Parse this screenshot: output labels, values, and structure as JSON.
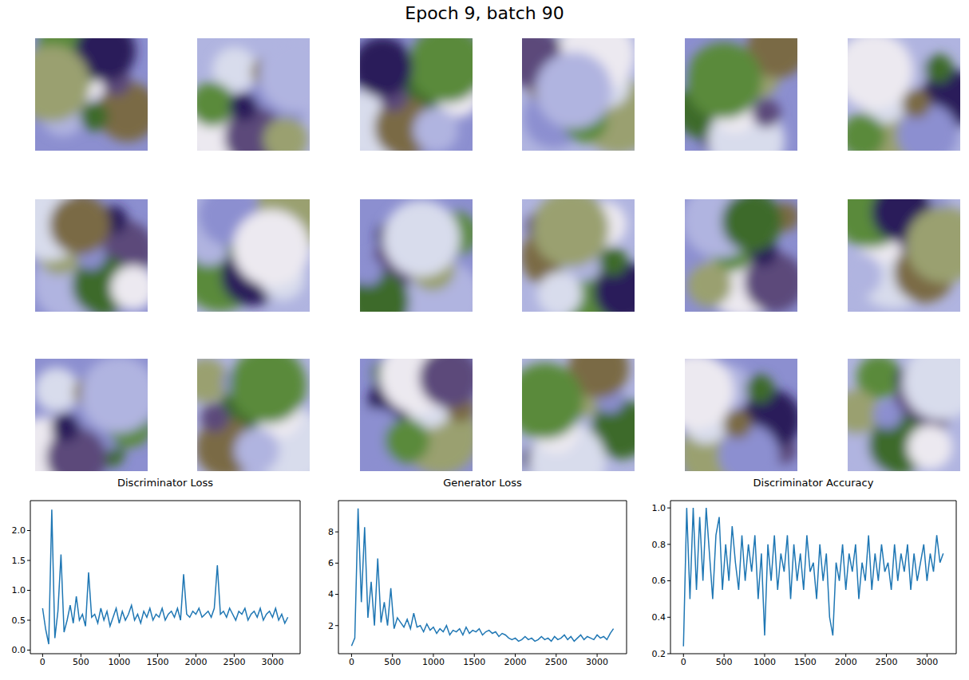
{
  "title": "Epoch 9, batch 90",
  "chart_data": [
    {
      "type": "line",
      "title": "Discriminator Loss",
      "color": "#1f77b4",
      "x": [
        0,
        40,
        80,
        120,
        160,
        200,
        240,
        280,
        320,
        360,
        400,
        440,
        480,
        520,
        560,
        600,
        640,
        680,
        720,
        760,
        800,
        840,
        880,
        920,
        960,
        1000,
        1040,
        1080,
        1120,
        1160,
        1200,
        1240,
        1280,
        1320,
        1360,
        1400,
        1440,
        1480,
        1520,
        1560,
        1600,
        1640,
        1680,
        1720,
        1760,
        1800,
        1840,
        1880,
        1920,
        1960,
        2000,
        2040,
        2080,
        2120,
        2160,
        2200,
        2240,
        2280,
        2320,
        2360,
        2400,
        2440,
        2480,
        2520,
        2560,
        2600,
        2640,
        2680,
        2720,
        2760,
        2800,
        2840,
        2880,
        2920,
        2960,
        3000,
        3040,
        3080,
        3120,
        3160,
        3200
      ],
      "values": [
        0.7,
        0.35,
        0.1,
        2.35,
        0.2,
        0.65,
        1.6,
        0.3,
        0.5,
        0.75,
        0.45,
        0.9,
        0.5,
        0.6,
        0.4,
        1.3,
        0.55,
        0.6,
        0.45,
        0.7,
        0.5,
        0.65,
        0.4,
        0.55,
        0.7,
        0.45,
        0.65,
        0.5,
        0.6,
        0.75,
        0.5,
        0.6,
        0.45,
        0.65,
        0.55,
        0.7,
        0.5,
        0.6,
        0.55,
        0.7,
        0.5,
        0.6,
        0.65,
        0.55,
        0.7,
        0.5,
        1.27,
        0.6,
        0.55,
        0.65,
        0.6,
        0.7,
        0.55,
        0.6,
        0.65,
        0.55,
        0.7,
        1.42,
        0.6,
        0.65,
        0.55,
        0.7,
        0.6,
        0.5,
        0.65,
        0.6,
        0.7,
        0.5,
        0.6,
        0.65,
        0.55,
        0.7,
        0.5,
        0.6,
        0.65,
        0.55,
        0.7,
        0.5,
        0.6,
        0.45,
        0.55
      ],
      "xlim": [
        -160,
        3360
      ],
      "xticks": [
        0,
        500,
        1000,
        1500,
        2000,
        2500,
        3000
      ],
      "ylim": [
        -0.06,
        2.5
      ],
      "yticks": [
        {
          "value": 0,
          "label": "0.0"
        },
        0.5,
        {
          "value": 1,
          "label": "1.0"
        },
        1.5,
        {
          "value": 2,
          "label": "2.0"
        }
      ]
    },
    {
      "type": "line",
      "title": "Generator Loss",
      "color": "#1f77b4",
      "x": [
        0,
        40,
        80,
        120,
        160,
        200,
        240,
        280,
        320,
        360,
        400,
        440,
        480,
        520,
        560,
        600,
        640,
        680,
        720,
        760,
        800,
        840,
        880,
        920,
        960,
        1000,
        1040,
        1080,
        1120,
        1160,
        1200,
        1240,
        1280,
        1320,
        1360,
        1400,
        1440,
        1480,
        1520,
        1560,
        1600,
        1640,
        1680,
        1720,
        1760,
        1800,
        1840,
        1880,
        1920,
        1960,
        2000,
        2040,
        2080,
        2120,
        2160,
        2200,
        2240,
        2280,
        2320,
        2360,
        2400,
        2440,
        2480,
        2520,
        2560,
        2600,
        2640,
        2680,
        2720,
        2760,
        2800,
        2840,
        2880,
        2920,
        2960,
        3000,
        3040,
        3080,
        3120,
        3160,
        3200
      ],
      "values": [
        0.7,
        1.2,
        9.5,
        3.5,
        8.3,
        2.5,
        4.8,
        2.0,
        6.3,
        2.2,
        3.5,
        2.0,
        4.4,
        1.8,
        2.5,
        2.2,
        1.9,
        2.4,
        1.8,
        2.8,
        1.9,
        2.0,
        1.6,
        2.1,
        1.7,
        1.9,
        1.5,
        1.8,
        1.6,
        2.0,
        1.4,
        1.7,
        1.6,
        1.8,
        1.4,
        1.9,
        1.5,
        1.7,
        1.6,
        1.8,
        1.4,
        1.6,
        1.7,
        1.5,
        1.6,
        1.3,
        1.5,
        1.4,
        1.2,
        1.1,
        1.2,
        1.0,
        1.1,
        1.3,
        1.1,
        1.2,
        1.0,
        1.1,
        1.3,
        1.1,
        1.2,
        1.0,
        1.3,
        1.1,
        1.2,
        1.4,
        1.1,
        1.3,
        1.0,
        1.2,
        1.4,
        1.1,
        1.3,
        1.2,
        1.1,
        1.4,
        1.2,
        1.3,
        1.1,
        1.5,
        1.8
      ],
      "xlim": [
        -160,
        3360
      ],
      "xticks": [
        0,
        500,
        1000,
        1500,
        2000,
        2500,
        3000
      ],
      "ylim": [
        0.2,
        10
      ],
      "yticks": [
        2,
        4,
        6,
        8
      ]
    },
    {
      "type": "line",
      "title": "Discriminator Accuracy",
      "color": "#1f77b4",
      "x": [
        0,
        40,
        80,
        120,
        160,
        200,
        240,
        280,
        320,
        360,
        400,
        440,
        480,
        520,
        560,
        600,
        640,
        680,
        720,
        760,
        800,
        840,
        880,
        920,
        960,
        1000,
        1040,
        1080,
        1120,
        1160,
        1200,
        1240,
        1280,
        1320,
        1360,
        1400,
        1440,
        1480,
        1520,
        1560,
        1600,
        1640,
        1680,
        1720,
        1760,
        1800,
        1840,
        1880,
        1920,
        1960,
        2000,
        2040,
        2080,
        2120,
        2160,
        2200,
        2240,
        2280,
        2320,
        2360,
        2400,
        2440,
        2480,
        2520,
        2560,
        2600,
        2640,
        2680,
        2720,
        2760,
        2800,
        2840,
        2880,
        2920,
        2960,
        3000,
        3040,
        3080,
        3120,
        3160,
        3200
      ],
      "values": [
        0.24,
        1.0,
        0.5,
        1.0,
        0.55,
        0.95,
        0.6,
        1.0,
        0.75,
        0.5,
        0.85,
        0.95,
        0.55,
        0.8,
        0.6,
        0.9,
        0.7,
        0.55,
        0.85,
        0.6,
        0.8,
        0.65,
        0.85,
        0.5,
        0.75,
        0.3,
        0.8,
        0.6,
        0.85,
        0.55,
        0.75,
        0.65,
        0.85,
        0.5,
        0.8,
        0.6,
        0.75,
        0.55,
        0.85,
        0.65,
        0.7,
        0.5,
        0.8,
        0.6,
        0.75,
        0.4,
        0.3,
        0.7,
        0.6,
        0.8,
        0.55,
        0.75,
        0.65,
        0.8,
        0.5,
        0.7,
        0.6,
        0.85,
        0.55,
        0.75,
        0.6,
        0.8,
        0.65,
        0.7,
        0.55,
        0.8,
        0.6,
        0.75,
        0.65,
        0.8,
        0.55,
        0.75,
        0.6,
        0.7,
        0.8,
        0.6,
        0.75,
        0.65,
        0.85,
        0.7,
        0.75
      ],
      "xlim": [
        -160,
        3360
      ],
      "xticks": [
        0,
        500,
        1000,
        1500,
        2000,
        2500,
        3000
      ],
      "ylim": [
        0.2,
        1.04
      ],
      "yticks": [
        0.2,
        0.4,
        0.6,
        0.8,
        {
          "value": 1,
          "label": "1.0"
        }
      ]
    }
  ]
}
